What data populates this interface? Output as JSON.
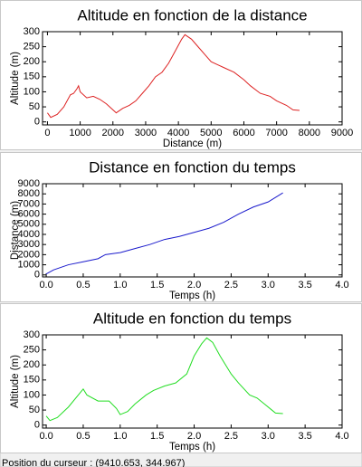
{
  "chart_data": [
    {
      "type": "line",
      "title": "Altitude en fonction de la distance",
      "x_label": "Distance (m)",
      "y_label": "Altitude (m)",
      "color": "#dd2222",
      "x": [
        0,
        100,
        300,
        500,
        700,
        800,
        900,
        950,
        1000,
        1200,
        1400,
        1600,
        1800,
        2000,
        2100,
        2300,
        2500,
        2700,
        2900,
        3100,
        3300,
        3500,
        3700,
        3900,
        4100,
        4200,
        4400,
        4600,
        4800,
        5000,
        5200,
        5400,
        5700,
        6000,
        6200,
        6500,
        6800,
        7000,
        7300,
        7500,
        7700
      ],
      "values": [
        30,
        15,
        25,
        50,
        90,
        95,
        110,
        120,
        100,
        80,
        85,
        75,
        60,
        40,
        30,
        45,
        55,
        70,
        95,
        120,
        150,
        165,
        195,
        235,
        275,
        290,
        275,
        250,
        225,
        200,
        190,
        180,
        165,
        140,
        120,
        95,
        85,
        70,
        55,
        40,
        38
      ],
      "xlim": [
        -150,
        9000
      ],
      "ylim": [
        -10,
        300
      ],
      "xticks": [
        0,
        1000,
        2000,
        3000,
        4000,
        5000,
        6000,
        7000,
        8000,
        9000
      ],
      "yticks": [
        0,
        50,
        100,
        150,
        200,
        250,
        300
      ]
    },
    {
      "type": "line",
      "title": "Distance en fonction du temps",
      "x_label": "Temps (h)",
      "y_label": "Distance (m)",
      "color": "#1a1acc",
      "x": [
        0,
        0.1,
        0.3,
        0.5,
        0.7,
        0.8,
        1.0,
        1.2,
        1.4,
        1.6,
        1.8,
        2.0,
        2.2,
        2.4,
        2.6,
        2.8,
        3.0,
        3.2
      ],
      "values": [
        100,
        500,
        1000,
        1300,
        1600,
        2000,
        2200,
        2600,
        3000,
        3500,
        3800,
        4200,
        4600,
        5200,
        6000,
        6700,
        7200,
        8100
      ],
      "xlim": [
        -0.05,
        4.0
      ],
      "ylim": [
        -200,
        9000
      ],
      "xticks": [
        {
          "value": 0,
          "label": "0.0"
        },
        {
          "value": 0.5,
          "label": "0.5"
        },
        {
          "value": 1,
          "label": "1.0"
        },
        {
          "value": 1.5,
          "label": "1.5"
        },
        {
          "value": 2,
          "label": "2.0"
        },
        {
          "value": 2.5,
          "label": "2.5"
        },
        {
          "value": 3,
          "label": "3.0"
        },
        {
          "value": 3.5,
          "label": "3.5"
        },
        {
          "value": 4,
          "label": "4.0"
        }
      ],
      "yticks": [
        0,
        1000,
        2000,
        3000,
        4000,
        5000,
        6000,
        7000,
        8000,
        9000
      ]
    },
    {
      "type": "line",
      "title": "Altitude en fonction du temps",
      "x_label": "Temps (h)",
      "y_label": "Altitude (m)",
      "color": "#22dd22",
      "x": [
        0,
        0.05,
        0.15,
        0.3,
        0.45,
        0.5,
        0.55,
        0.7,
        0.85,
        0.95,
        1.0,
        1.1,
        1.2,
        1.35,
        1.45,
        1.6,
        1.75,
        1.9,
        2.0,
        2.1,
        2.17,
        2.25,
        2.35,
        2.5,
        2.6,
        2.75,
        2.85,
        2.95,
        3.05,
        3.1,
        3.2
      ],
      "values": [
        30,
        15,
        25,
        60,
        105,
        120,
        100,
        80,
        80,
        55,
        35,
        45,
        70,
        100,
        115,
        130,
        140,
        170,
        230,
        270,
        290,
        275,
        230,
        170,
        140,
        100,
        90,
        70,
        50,
        40,
        38
      ],
      "xlim": [
        -0.05,
        4.0
      ],
      "ylim": [
        -10,
        300
      ],
      "xticks": [
        {
          "value": 0,
          "label": "0.0"
        },
        {
          "value": 0.5,
          "label": "0.5"
        },
        {
          "value": 1,
          "label": "1.0"
        },
        {
          "value": 1.5,
          "label": "1.5"
        },
        {
          "value": 2,
          "label": "2.0"
        },
        {
          "value": 2.5,
          "label": "2.5"
        },
        {
          "value": 3,
          "label": "3.0"
        },
        {
          "value": 3.5,
          "label": "3.5"
        },
        {
          "value": 4,
          "label": "4.0"
        }
      ],
      "yticks": [
        0,
        50,
        100,
        150,
        200,
        250,
        300
      ]
    }
  ],
  "status_bar": "Position du curseur : (9410.653, 344.967)"
}
